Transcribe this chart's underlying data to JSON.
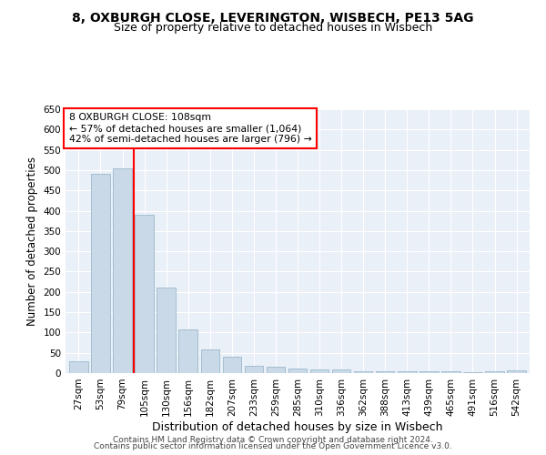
{
  "title_line1": "8, OXBURGH CLOSE, LEVERINGTON, WISBECH, PE13 5AG",
  "title_line2": "Size of property relative to detached houses in Wisbech",
  "xlabel": "Distribution of detached houses by size in Wisbech",
  "ylabel": "Number of detached properties",
  "footnote1": "Contains HM Land Registry data © Crown copyright and database right 2024.",
  "footnote2": "Contains public sector information licensed under the Open Government Licence v3.0.",
  "categories": [
    "27sqm",
    "53sqm",
    "79sqm",
    "105sqm",
    "130sqm",
    "156sqm",
    "182sqm",
    "207sqm",
    "233sqm",
    "259sqm",
    "285sqm",
    "310sqm",
    "336sqm",
    "362sqm",
    "388sqm",
    "413sqm",
    "439sqm",
    "465sqm",
    "491sqm",
    "516sqm",
    "542sqm"
  ],
  "values": [
    30,
    490,
    505,
    390,
    210,
    107,
    59,
    40,
    18,
    15,
    12,
    10,
    9,
    5,
    5,
    5,
    5,
    5,
    3,
    5,
    6
  ],
  "bar_color": "#c9d9e8",
  "bar_edge_color": "#9ab8cc",
  "annotation_text": "8 OXBURGH CLOSE: 108sqm\n← 57% of detached houses are smaller (1,064)\n42% of semi-detached houses are larger (796) →",
  "annotation_box_color": "white",
  "annotation_box_edge": "red",
  "ylim": [
    0,
    650
  ],
  "yticks": [
    0,
    50,
    100,
    150,
    200,
    250,
    300,
    350,
    400,
    450,
    500,
    550,
    600,
    650
  ],
  "background_color": "#eaf0f8",
  "grid_color": "white",
  "title_fontsize": 10,
  "subtitle_fontsize": 9,
  "tick_fontsize": 7.5,
  "ylabel_fontsize": 8.5,
  "xlabel_fontsize": 9,
  "footnote_fontsize": 6.5
}
